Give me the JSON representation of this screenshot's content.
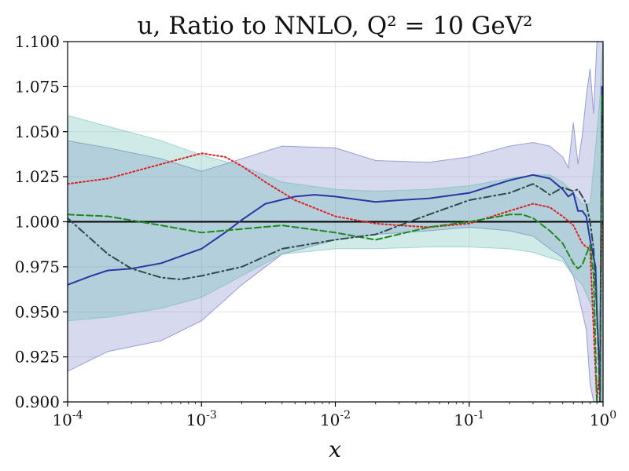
{
  "chart_data": {
    "type": "line",
    "title": "u, Ratio to NNLO, Q² = 10 GeV²",
    "xlabel": "x",
    "ylabel": "",
    "xscale": "log",
    "xlim": [
      0.0001,
      1
    ],
    "ylim": [
      0.9,
      1.1
    ],
    "grid": true,
    "legend": "none",
    "xticks": [
      {
        "value": 0.0001,
        "label": "10-4"
      },
      {
        "value": 0.001,
        "label": "10-3"
      },
      {
        "value": 0.01,
        "label": "10-2"
      },
      {
        "value": 0.1,
        "label": "10-1"
      },
      {
        "value": 1,
        "label": "100"
      }
    ],
    "yticks": [
      "0.900",
      "0.925",
      "0.950",
      "0.975",
      "1.000",
      "1.025",
      "1.050",
      "1.075",
      "1.100"
    ],
    "reference_line": 1.0,
    "bands": [
      {
        "color": "#4a50b0",
        "opacity": 0.22,
        "x": [
          0.0001,
          0.0002,
          0.0005,
          0.001,
          0.002,
          0.004,
          0.01,
          0.02,
          0.05,
          0.1,
          0.2,
          0.3,
          0.4,
          0.5,
          0.55,
          0.6,
          0.65,
          0.7,
          0.75,
          0.8,
          0.85,
          0.9,
          0.95,
          0.98,
          1.0
        ],
        "upper": [
          1.045,
          1.041,
          1.035,
          1.028,
          1.035,
          1.042,
          1.041,
          1.034,
          1.033,
          1.036,
          1.042,
          1.044,
          1.042,
          1.036,
          1.03,
          1.055,
          1.032,
          1.048,
          1.07,
          1.085,
          1.06,
          1.1,
          1.1,
          1.1,
          1.1
        ],
        "lower": [
          0.917,
          0.928,
          0.934,
          0.945,
          0.965,
          0.982,
          0.99,
          0.993,
          0.995,
          0.997,
          0.995,
          0.992,
          0.985,
          0.98,
          0.975,
          0.97,
          0.96,
          0.95,
          0.94,
          0.91,
          0.9,
          0.9,
          0.9,
          0.9,
          0.9
        ]
      },
      {
        "color": "#5fb8b0",
        "opacity": 0.3,
        "x": [
          0.0001,
          0.0002,
          0.0005,
          0.001,
          0.002,
          0.004,
          0.01,
          0.02,
          0.05,
          0.1,
          0.2,
          0.3,
          0.4,
          0.5,
          0.6,
          0.7,
          0.8,
          0.85,
          0.9,
          0.95,
          0.98,
          1.0
        ],
        "upper": [
          1.059,
          1.053,
          1.045,
          1.037,
          1.031,
          1.022,
          1.018,
          1.017,
          1.018,
          1.02,
          1.024,
          1.026,
          1.026,
          1.022,
          1.016,
          1.01,
          1.01,
          1.03,
          1.05,
          1.07,
          1.09,
          1.1
        ],
        "lower": [
          0.945,
          0.947,
          0.952,
          0.958,
          0.97,
          0.982,
          0.985,
          0.985,
          0.986,
          0.986,
          0.985,
          0.983,
          0.98,
          0.978,
          0.97,
          0.965,
          0.955,
          0.95,
          0.94,
          0.92,
          0.9,
          0.9
        ]
      }
    ],
    "series": [
      {
        "color": "#2b35a0",
        "dash": "solid",
        "x": [
          0.0001,
          0.00015,
          0.0002,
          0.0003,
          0.0005,
          0.001,
          0.0015,
          0.002,
          0.003,
          0.005,
          0.007,
          0.01,
          0.02,
          0.03,
          0.05,
          0.1,
          0.2,
          0.3,
          0.4,
          0.5,
          0.55,
          0.6,
          0.65,
          0.7,
          0.75,
          0.8,
          0.85,
          0.88,
          0.9,
          0.95,
          0.98
        ],
        "y": [
          0.965,
          0.97,
          0.973,
          0.974,
          0.977,
          0.985,
          0.994,
          1.001,
          1.01,
          1.014,
          1.015,
          1.014,
          1.011,
          1.012,
          1.013,
          1.016,
          1.023,
          1.026,
          1.024,
          1.018,
          1.014,
          1.016,
          1.006,
          1.006,
          1.003,
          0.99,
          0.98,
          0.975,
          0.95,
          0.91,
          1.075
        ]
      },
      {
        "color": "#e02020",
        "dash": "dotted",
        "x": [
          0.0001,
          0.0002,
          0.0005,
          0.001,
          0.0015,
          0.002,
          0.003,
          0.005,
          0.01,
          0.02,
          0.03,
          0.05,
          0.1,
          0.2,
          0.3,
          0.4,
          0.5,
          0.6,
          0.7,
          0.75,
          0.8,
          0.85,
          0.9,
          0.95,
          0.98
        ],
        "y": [
          1.021,
          1.024,
          1.032,
          1.038,
          1.036,
          1.031,
          1.022,
          1.012,
          1.003,
          0.999,
          0.998,
          0.997,
          0.999,
          1.006,
          1.01,
          1.008,
          1.003,
          0.998,
          0.988,
          0.986,
          0.985,
          0.94,
          0.9,
          0.92,
          1.0
        ]
      },
      {
        "color": "#1a8a1a",
        "dash": "dashed",
        "x": [
          0.0001,
          0.0002,
          0.0005,
          0.001,
          0.002,
          0.004,
          0.01,
          0.02,
          0.05,
          0.1,
          0.2,
          0.25,
          0.3,
          0.4,
          0.5,
          0.6,
          0.65,
          0.7,
          0.75,
          0.8,
          0.85,
          0.9,
          0.95,
          0.98
        ],
        "y": [
          1.004,
          1.003,
          0.998,
          0.994,
          0.996,
          0.998,
          0.994,
          0.99,
          0.997,
          1.0,
          1.004,
          1.004,
          1.002,
          0.995,
          0.988,
          0.977,
          0.974,
          0.976,
          0.982,
          0.987,
          0.97,
          0.9,
          0.9,
          1.07
        ]
      },
      {
        "color": "#2c4a4a",
        "dash": "dashdot",
        "x": [
          0.0001,
          0.0002,
          0.0003,
          0.0005,
          0.0007,
          0.001,
          0.002,
          0.004,
          0.01,
          0.02,
          0.05,
          0.1,
          0.2,
          0.3,
          0.35,
          0.4,
          0.5,
          0.6,
          0.65,
          0.7,
          0.75,
          0.8,
          0.85,
          0.9,
          0.95,
          0.98
        ],
        "y": [
          1.002,
          0.982,
          0.974,
          0.969,
          0.968,
          0.97,
          0.975,
          0.985,
          0.99,
          0.993,
          1.004,
          1.012,
          1.016,
          1.021,
          1.018,
          1.015,
          1.019,
          1.017,
          1.018,
          1.014,
          1.01,
          1.0,
          0.985,
          0.95,
          0.9,
          1.06
        ]
      }
    ]
  }
}
